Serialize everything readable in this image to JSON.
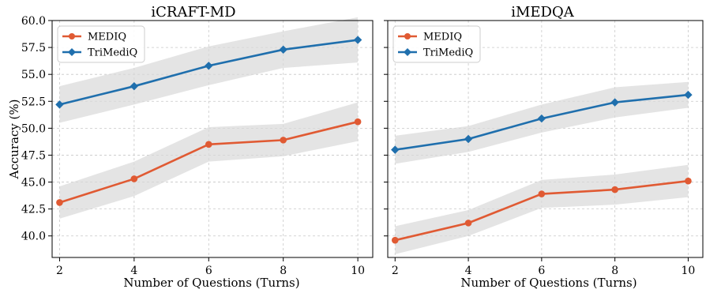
{
  "chart_data": [
    {
      "type": "line",
      "title": "iCRAFT-MD",
      "xlabel": "Number of Questions (Turns)",
      "ylabel": "Accuracy (%)",
      "x": [
        2,
        4,
        6,
        8,
        10
      ],
      "xlim": [
        1.8,
        10.4
      ],
      "ylim": [
        38,
        60
      ],
      "yticks": [
        "40.0",
        "42.5",
        "45.0",
        "47.5",
        "50.0",
        "52.5",
        "55.0",
        "57.5",
        "60.0"
      ],
      "xticks": [
        "2",
        "4",
        "6",
        "8",
        "10"
      ],
      "grid": true,
      "legend_position": "top-left",
      "series": [
        {
          "name": "MEDIQ",
          "color": "#e05a33",
          "marker": "circle",
          "values": [
            43.1,
            45.3,
            48.5,
            48.9,
            50.6
          ],
          "band_low": [
            41.6,
            43.7,
            46.9,
            47.4,
            48.8
          ],
          "band_high": [
            44.6,
            46.9,
            50.1,
            50.4,
            52.4
          ]
        },
        {
          "name": "TriMediQ",
          "color": "#1f6fad",
          "marker": "diamond",
          "values": [
            52.2,
            53.9,
            55.8,
            57.3,
            58.2
          ],
          "band_low": [
            50.5,
            52.2,
            54.0,
            55.6,
            56.1
          ],
          "band_high": [
            53.9,
            55.6,
            57.6,
            59.0,
            60.3
          ]
        }
      ]
    },
    {
      "type": "line",
      "title": "iMEDQA",
      "xlabel": "Number of Questions (Turns)",
      "ylabel": "",
      "x": [
        2,
        4,
        6,
        8,
        10
      ],
      "xlim": [
        1.8,
        10.4
      ],
      "ylim": [
        38,
        60
      ],
      "yticks": [],
      "xticks": [
        "2",
        "4",
        "6",
        "8",
        "10"
      ],
      "grid": true,
      "legend_position": "top-left",
      "series": [
        {
          "name": "MEDIQ",
          "color": "#e05a33",
          "marker": "circle",
          "values": [
            39.6,
            41.2,
            43.9,
            44.3,
            45.1
          ],
          "band_low": [
            38.3,
            40.0,
            42.6,
            42.9,
            43.6
          ],
          "band_high": [
            40.9,
            42.4,
            45.2,
            45.7,
            46.6
          ]
        },
        {
          "name": "TriMediQ",
          "color": "#1f6fad",
          "marker": "diamond",
          "values": [
            48.0,
            49.0,
            50.9,
            52.4,
            53.1
          ],
          "band_low": [
            46.7,
            47.8,
            49.6,
            51.0,
            51.9
          ],
          "band_high": [
            49.3,
            50.2,
            52.2,
            53.8,
            54.3
          ]
        }
      ]
    }
  ]
}
